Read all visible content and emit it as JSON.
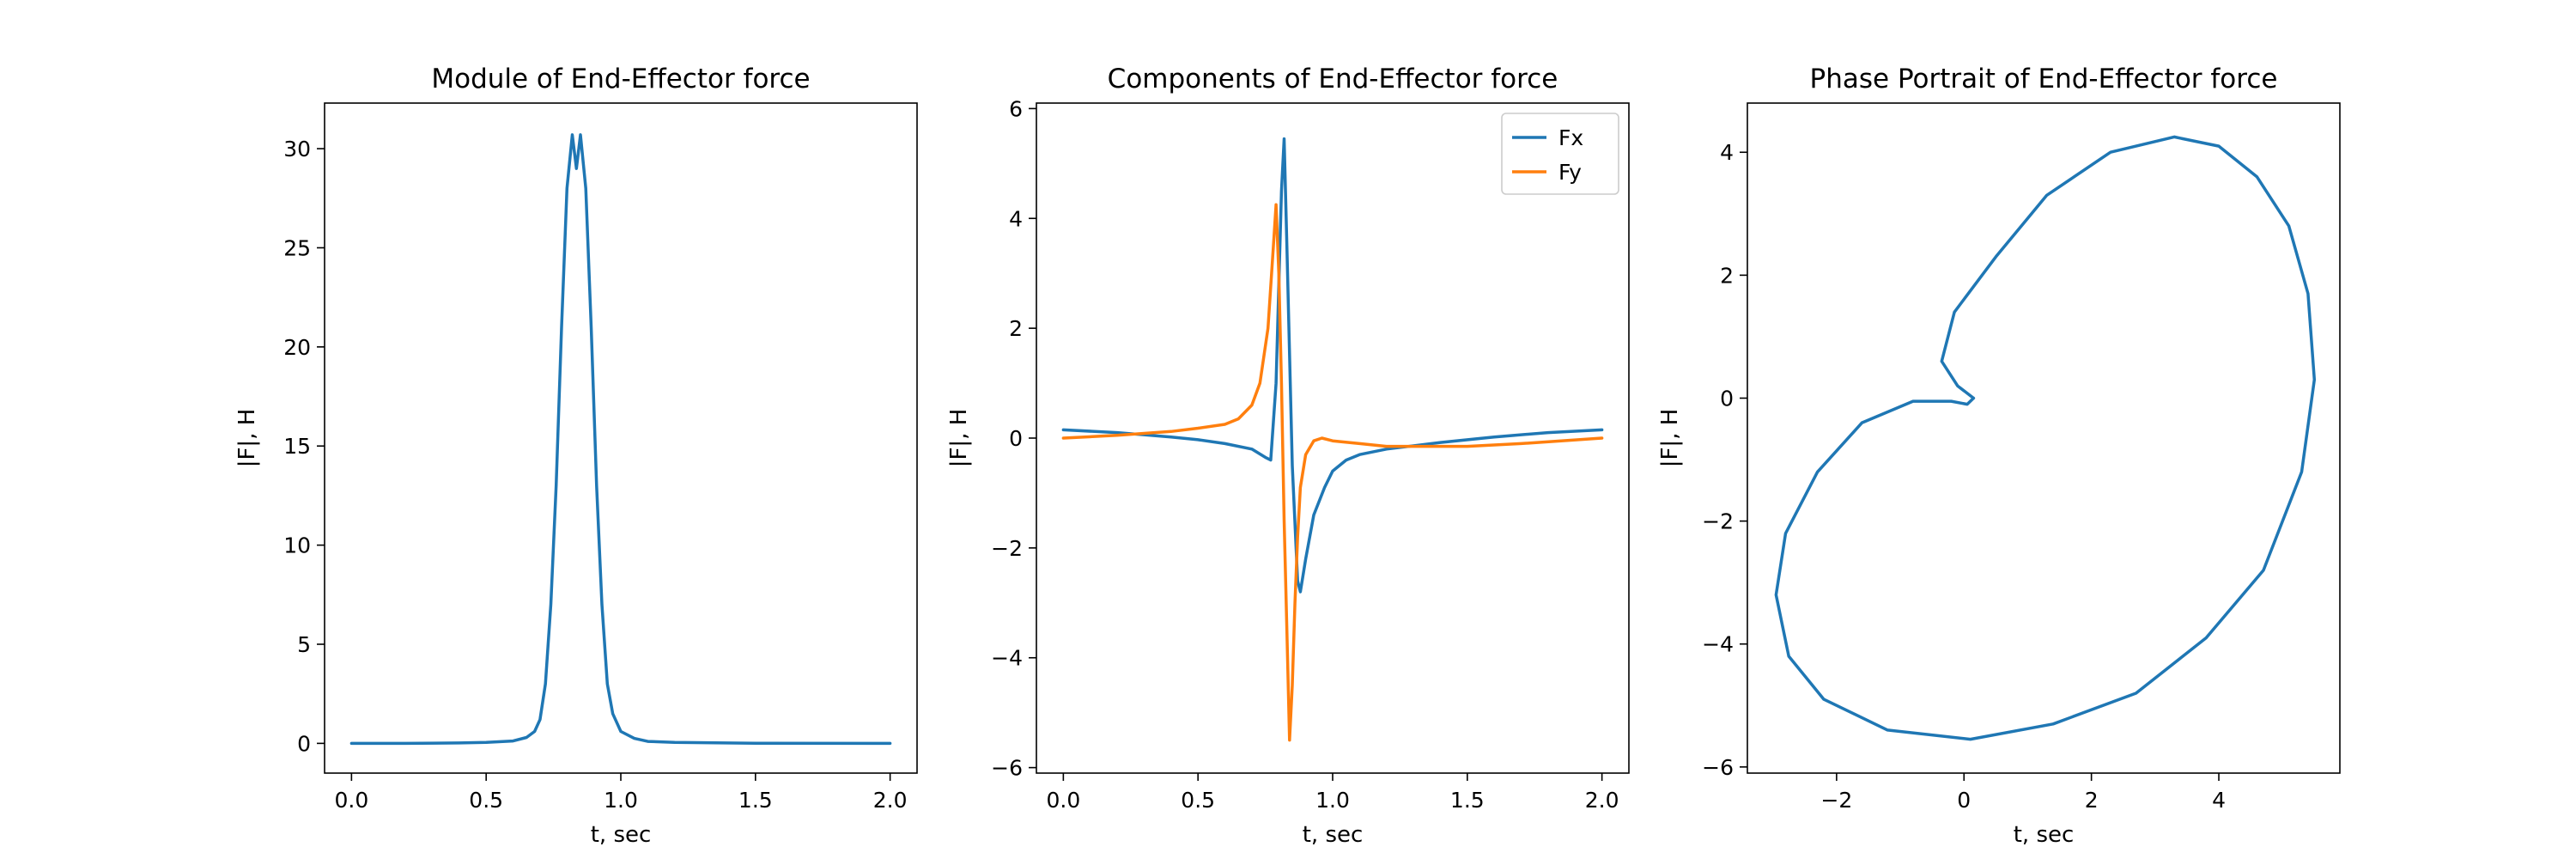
{
  "chart_data": [
    {
      "type": "line",
      "title": "Module of End-Effector force",
      "xlabel": "t, sec",
      "ylabel": "|F|, H",
      "xlim": [
        -0.1,
        2.1
      ],
      "ylim": [
        -1.5,
        32.3
      ],
      "xticks": [
        0.0,
        0.5,
        1.0,
        1.5,
        2.0
      ],
      "xtick_labels": [
        "0.0",
        "0.5",
        "1.0",
        "1.5",
        "2.0"
      ],
      "yticks": [
        0,
        5,
        10,
        15,
        20,
        25,
        30
      ],
      "ytick_labels": [
        "0",
        "5",
        "10",
        "15",
        "20",
        "25",
        "30"
      ],
      "grid": false,
      "series": [
        {
          "color": "#1f77b4",
          "x": [
            0,
            0.2,
            0.4,
            0.5,
            0.6,
            0.65,
            0.68,
            0.7,
            0.72,
            0.74,
            0.76,
            0.78,
            0.8,
            0.82,
            0.835,
            0.85,
            0.87,
            0.89,
            0.91,
            0.93,
            0.95,
            0.97,
            1.0,
            1.05,
            1.1,
            1.2,
            1.5,
            2.0
          ],
          "y": [
            0,
            0,
            0.02,
            0.05,
            0.12,
            0.3,
            0.6,
            1.2,
            3,
            7,
            13,
            21,
            28,
            30.7,
            29.0,
            30.7,
            28,
            21,
            13,
            7,
            3,
            1.5,
            0.6,
            0.25,
            0.1,
            0.05,
            0.01,
            0
          ]
        }
      ]
    },
    {
      "type": "line",
      "title": "Components of End-Effector force",
      "xlabel": "t, sec",
      "ylabel": "|F|, H",
      "xlim": [
        -0.1,
        2.1
      ],
      "ylim": [
        -6.1,
        6.1
      ],
      "xticks": [
        0.0,
        0.5,
        1.0,
        1.5,
        2.0
      ],
      "xtick_labels": [
        "0.0",
        "0.5",
        "1.0",
        "1.5",
        "2.0"
      ],
      "yticks": [
        -6,
        -4,
        -2,
        0,
        2,
        4,
        6
      ],
      "ytick_labels": [
        "−6",
        "−4",
        "−2",
        "0",
        "2",
        "4",
        "6"
      ],
      "grid": false,
      "legend": "top-right",
      "series": [
        {
          "name": "Fx",
          "color": "#1f77b4",
          "x": [
            0,
            0.2,
            0.4,
            0.5,
            0.6,
            0.7,
            0.75,
            0.77,
            0.79,
            0.81,
            0.82,
            0.83,
            0.85,
            0.87,
            0.88,
            0.9,
            0.93,
            0.97,
            1.0,
            1.05,
            1.1,
            1.2,
            1.4,
            1.6,
            1.8,
            2.0
          ],
          "y": [
            0.15,
            0.1,
            0.02,
            -0.03,
            -0.1,
            -0.2,
            -0.35,
            -0.4,
            1.0,
            4.5,
            5.45,
            3.5,
            -0.5,
            -2.6,
            -2.8,
            -2.2,
            -1.4,
            -0.9,
            -0.6,
            -0.4,
            -0.3,
            -0.2,
            -0.08,
            0.02,
            0.1,
            0.15
          ]
        },
        {
          "name": "Fy",
          "color": "#ff7f0e",
          "x": [
            0,
            0.2,
            0.4,
            0.5,
            0.6,
            0.65,
            0.7,
            0.73,
            0.76,
            0.78,
            0.79,
            0.8,
            0.81,
            0.82,
            0.83,
            0.84,
            0.85,
            0.86,
            0.87,
            0.88,
            0.9,
            0.93,
            0.96,
            1.0,
            1.1,
            1.2,
            1.3,
            1.5,
            1.7,
            2.0
          ],
          "y": [
            0,
            0.05,
            0.12,
            0.18,
            0.25,
            0.35,
            0.6,
            1.0,
            2.0,
            3.5,
            4.25,
            3.0,
            1.0,
            -1.5,
            -3.5,
            -5.5,
            -4.5,
            -3.0,
            -1.8,
            -0.9,
            -0.3,
            -0.05,
            0.0,
            -0.05,
            -0.1,
            -0.15,
            -0.15,
            -0.15,
            -0.1,
            0
          ]
        }
      ],
      "legend_entries": [
        "Fx",
        "Fy"
      ]
    },
    {
      "type": "line",
      "title": "Phase Portrait of End-Effector force",
      "xlabel": "t, sec",
      "ylabel": "|F|, H",
      "xlim": [
        -3.4,
        5.9
      ],
      "ylim": [
        -6.1,
        4.8
      ],
      "xticks": [
        -2,
        0,
        2,
        4
      ],
      "xtick_labels": [
        "−2",
        "0",
        "2",
        "4"
      ],
      "yticks": [
        -6,
        -4,
        -2,
        0,
        2,
        4
      ],
      "ytick_labels": [
        "−6",
        "−4",
        "−2",
        "0",
        "2",
        "4"
      ],
      "grid": false,
      "series": [
        {
          "color": "#1f77b4",
          "x": [
            0.15,
            0.05,
            -0.2,
            -0.8,
            -1.6,
            -2.3,
            -2.8,
            -2.95,
            -2.75,
            -2.2,
            -1.2,
            0.1,
            1.4,
            2.7,
            3.8,
            4.7,
            5.3,
            5.5,
            5.4,
            5.1,
            4.6,
            4.0,
            3.3,
            2.3,
            1.3,
            0.5,
            -0.15,
            -0.35,
            -0.1,
            0.15
          ],
          "y": [
            0,
            -0.1,
            -0.05,
            -0.05,
            -0.4,
            -1.2,
            -2.2,
            -3.2,
            -4.2,
            -4.9,
            -5.4,
            -5.55,
            -5.3,
            -4.8,
            -3.9,
            -2.8,
            -1.2,
            0.3,
            1.7,
            2.8,
            3.6,
            4.1,
            4.25,
            4.0,
            3.3,
            2.3,
            1.4,
            0.6,
            0.2,
            0
          ]
        }
      ]
    }
  ]
}
